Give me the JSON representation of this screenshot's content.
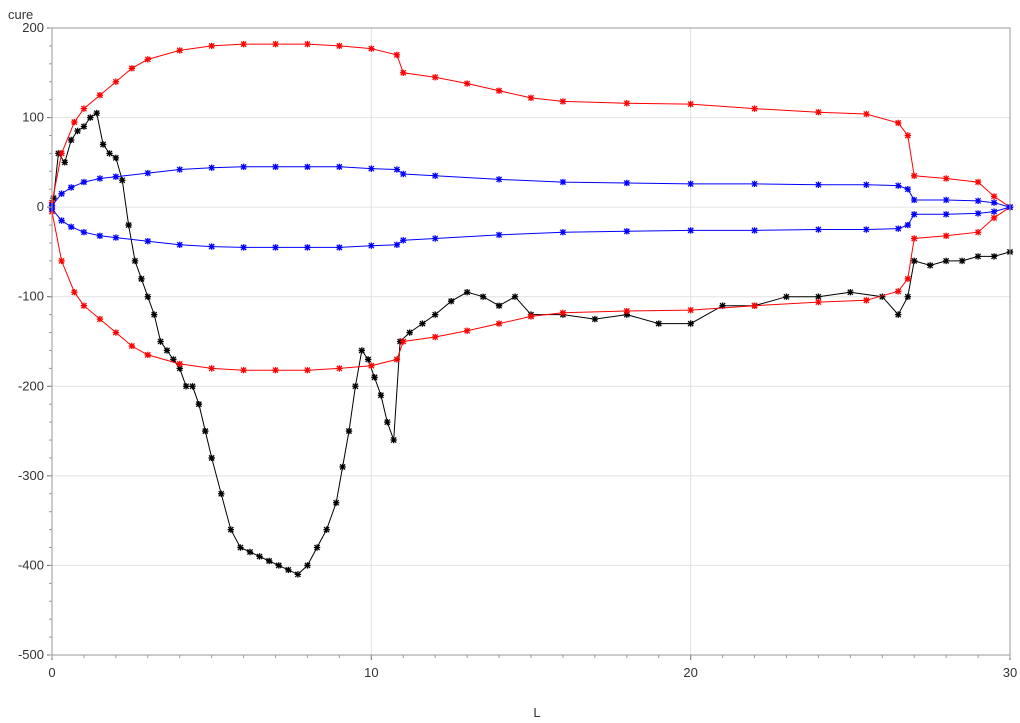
{
  "chart_data": {
    "type": "scatter",
    "xlabel": "L",
    "ylabel": "cure",
    "xlim": [
      0,
      30
    ],
    "ylim": [
      -500,
      200
    ],
    "x_ticks": [
      0,
      10,
      20,
      30
    ],
    "y_ticks": [
      -500,
      -400,
      -300,
      -200,
      -100,
      0,
      100,
      200
    ],
    "grid": true,
    "marker": "asterisk",
    "colors": {
      "black": "#000000",
      "red": "#ff0000",
      "blue": "#0000ff"
    },
    "series": [
      {
        "color": "#000000",
        "x": [
          0.05,
          0.2,
          0.4,
          0.6,
          0.8,
          1.0,
          1.2,
          1.4,
          1.6,
          1.8,
          2.0,
          2.2,
          2.4,
          2.6,
          2.8,
          3.0,
          3.2,
          3.4,
          3.6,
          3.8,
          4.0,
          4.2,
          4.4,
          4.6,
          4.8,
          5.0,
          5.3,
          5.6,
          5.9,
          6.2,
          6.5,
          6.8,
          7.1,
          7.4,
          7.7,
          8.0,
          8.3,
          8.6,
          8.9,
          9.1,
          9.3,
          9.5,
          9.7,
          9.9,
          10.1,
          10.3,
          10.5,
          10.7,
          10.9,
          11.2,
          11.6,
          12.0,
          12.5,
          13.0,
          13.5,
          14.0,
          14.5,
          15.0,
          16.0,
          17.0,
          18.0,
          19.0,
          20.0,
          21.0,
          22.0,
          23.0,
          24.0,
          25.0,
          26.0,
          26.5,
          26.8,
          27.0,
          27.5,
          28.0,
          28.5,
          29.0,
          29.5,
          30.0
        ],
        "y": [
          10,
          60,
          50,
          75,
          85,
          90,
          100,
          105,
          70,
          60,
          55,
          30,
          -20,
          -60,
          -80,
          -100,
          -120,
          -150,
          -160,
          -170,
          -180,
          -200,
          -200,
          -220,
          -250,
          -280,
          -320,
          -360,
          -380,
          -385,
          -390,
          -395,
          -400,
          -405,
          -410,
          -400,
          -380,
          -360,
          -330,
          -290,
          -250,
          -200,
          -160,
          -170,
          -190,
          -210,
          -240,
          -260,
          -150,
          -140,
          -130,
          -120,
          -105,
          -95,
          -100,
          -110,
          -100,
          -120,
          -120,
          -125,
          -120,
          -130,
          -130,
          -110,
          -110,
          -100,
          -100,
          -95,
          -100,
          -120,
          -100,
          -60,
          -65,
          -60,
          -60,
          -55,
          -55,
          -50
        ]
      },
      {
        "color": "#ff0000",
        "x": [
          0.0,
          0.3,
          0.7,
          1.0,
          1.5,
          2.0,
          2.5,
          3.0,
          4.0,
          5.0,
          6.0,
          7.0,
          8.0,
          9.0,
          10.0,
          10.8,
          11.0,
          12.0,
          13.0,
          14.0,
          15.0,
          16.0,
          18.0,
          20.0,
          22.0,
          24.0,
          25.5,
          26.5,
          26.8,
          27.0,
          28.0,
          29.0,
          29.5,
          30.0
        ],
        "y": [
          5,
          60,
          95,
          110,
          125,
          140,
          155,
          165,
          175,
          180,
          182,
          182,
          182,
          180,
          177,
          170,
          150,
          145,
          138,
          130,
          122,
          118,
          116,
          115,
          110,
          106,
          104,
          94,
          80,
          35,
          32,
          28,
          12,
          0
        ]
      },
      {
        "color": "#ff0000",
        "x": [
          0.0,
          0.3,
          0.7,
          1.0,
          1.5,
          2.0,
          2.5,
          3.0,
          4.0,
          5.0,
          6.0,
          7.0,
          8.0,
          9.0,
          10.0,
          10.8,
          11.0,
          12.0,
          13.0,
          14.0,
          15.0,
          16.0,
          18.0,
          20.0,
          22.0,
          24.0,
          25.5,
          26.5,
          26.8,
          27.0,
          28.0,
          29.0,
          29.5,
          30.0
        ],
        "y": [
          -5,
          -60,
          -95,
          -110,
          -125,
          -140,
          -155,
          -165,
          -175,
          -180,
          -182,
          -182,
          -182,
          -180,
          -177,
          -170,
          -150,
          -145,
          -138,
          -130,
          -122,
          -118,
          -116,
          -115,
          -110,
          -106,
          -104,
          -94,
          -80,
          -35,
          -32,
          -28,
          -12,
          0
        ]
      },
      {
        "color": "#0000ff",
        "x": [
          0.0,
          0.3,
          0.6,
          1.0,
          1.5,
          2.0,
          3.0,
          4.0,
          5.0,
          6.0,
          7.0,
          8.0,
          9.0,
          10.0,
          10.8,
          11.0,
          12.0,
          14.0,
          16.0,
          18.0,
          20.0,
          22.0,
          24.0,
          25.5,
          26.5,
          26.8,
          27.0,
          28.0,
          29.0,
          29.5,
          30.0
        ],
        "y": [
          2,
          15,
          22,
          28,
          32,
          34,
          38,
          42,
          44,
          45,
          45,
          45,
          45,
          43,
          42,
          37,
          35,
          31,
          28,
          27,
          26,
          26,
          25,
          25,
          24,
          20,
          8,
          8,
          7,
          5,
          0
        ]
      },
      {
        "color": "#0000ff",
        "x": [
          0.0,
          0.3,
          0.6,
          1.0,
          1.5,
          2.0,
          3.0,
          4.0,
          5.0,
          6.0,
          7.0,
          8.0,
          9.0,
          10.0,
          10.8,
          11.0,
          12.0,
          14.0,
          16.0,
          18.0,
          20.0,
          22.0,
          24.0,
          25.5,
          26.5,
          26.8,
          27.0,
          28.0,
          29.0,
          29.5,
          30.0
        ],
        "y": [
          -2,
          -15,
          -22,
          -28,
          -32,
          -34,
          -38,
          -42,
          -44,
          -45,
          -45,
          -45,
          -45,
          -43,
          -42,
          -37,
          -35,
          -31,
          -28,
          -27,
          -26,
          -26,
          -25,
          -25,
          -24,
          -20,
          -8,
          -8,
          -7,
          -5,
          0
        ]
      }
    ]
  }
}
